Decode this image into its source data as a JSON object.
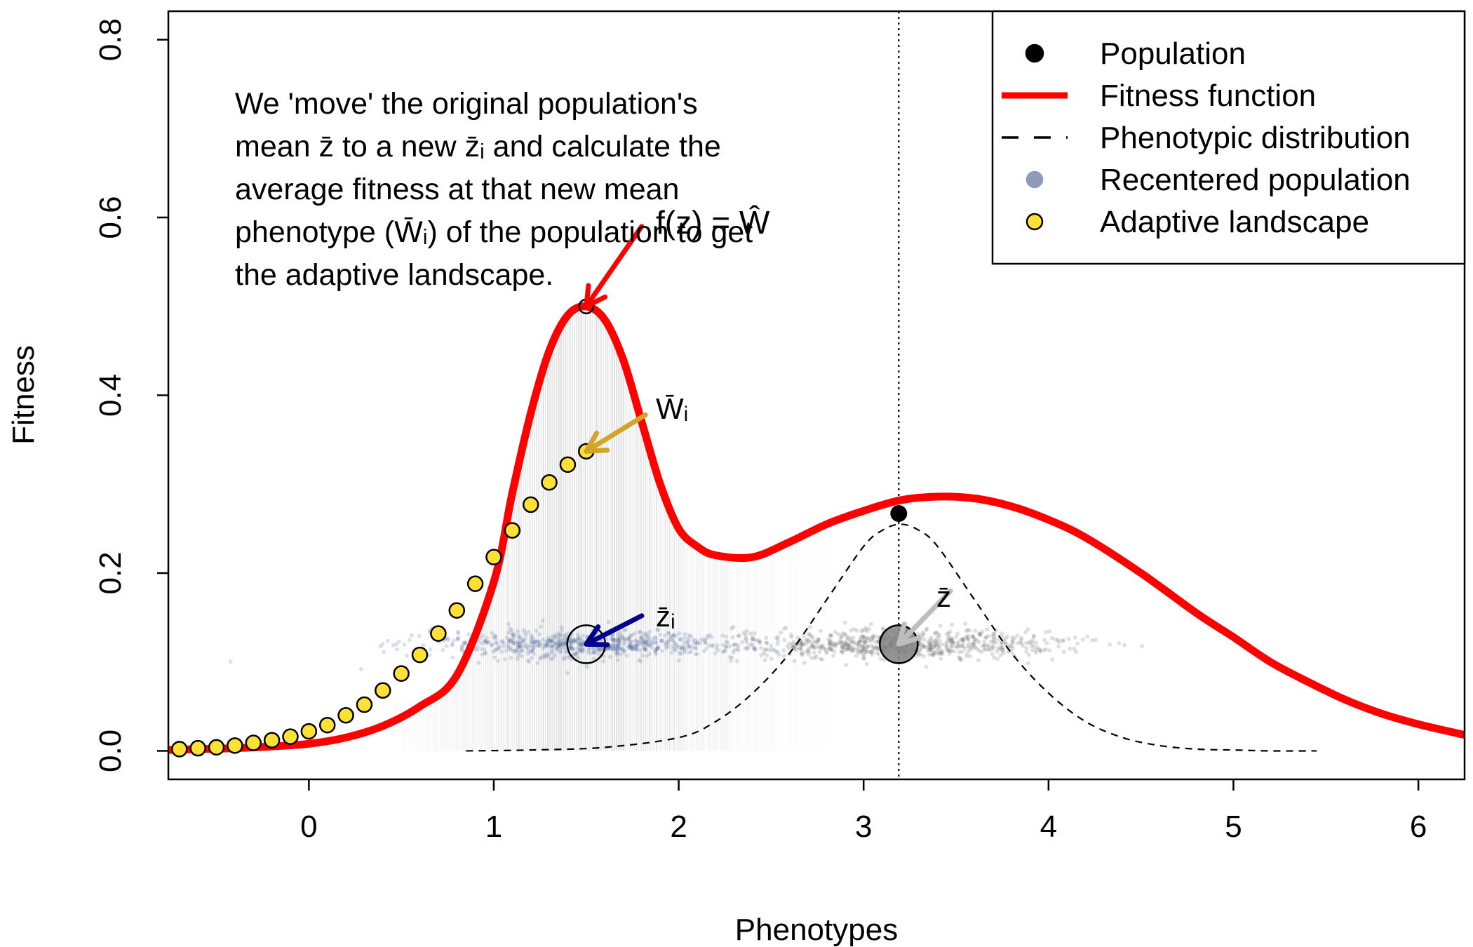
{
  "chart_data": {
    "type": "scatter",
    "xlabel": "Phenotypes",
    "ylabel": "Fitness",
    "xlim": [
      -0.76,
      6.25
    ],
    "ylim": [
      -0.032,
      0.832
    ],
    "x_ticks": [
      0,
      1,
      2,
      3,
      4,
      5,
      6
    ],
    "y_ticks": [
      0.0,
      0.2,
      0.4,
      0.6,
      0.8
    ],
    "x_tick_labels": [
      "0",
      "1",
      "2",
      "3",
      "4",
      "5",
      "6"
    ],
    "y_tick_labels": [
      "0.0",
      "0.2",
      "0.4",
      "0.6",
      "0.8"
    ],
    "grid": false,
    "legend_position": "top-right",
    "legend": [
      {
        "label": "Population",
        "kind": "point",
        "color": "#000000"
      },
      {
        "label": "Fitness function",
        "kind": "line",
        "color": "#ff0000"
      },
      {
        "label": "Phenotypic distribution",
        "kind": "dashed-line",
        "color": "#000000"
      },
      {
        "label": "Recentered population",
        "kind": "point",
        "color": "#8f9bbd"
      },
      {
        "label": "Adaptive landscape",
        "kind": "point",
        "color": "#ffe135"
      }
    ],
    "fitness_function": {
      "color": "#ff0000",
      "x": [
        -0.76,
        -0.6,
        -0.4,
        -0.2,
        0.0,
        0.2,
        0.4,
        0.6,
        0.8,
        1.0,
        1.1,
        1.2,
        1.3,
        1.4,
        1.5,
        1.6,
        1.7,
        1.8,
        1.9,
        2.0,
        2.1,
        2.2,
        2.4,
        2.6,
        2.8,
        3.0,
        3.2,
        3.4,
        3.6,
        3.8,
        4.0,
        4.2,
        4.5,
        4.8,
        5.0,
        5.2,
        5.4,
        5.6,
        5.8,
        6.0,
        6.25
      ],
      "y": [
        0.001,
        0.002,
        0.003,
        0.005,
        0.008,
        0.015,
        0.028,
        0.05,
        0.085,
        0.19,
        0.29,
        0.38,
        0.45,
        0.49,
        0.5,
        0.485,
        0.44,
        0.37,
        0.3,
        0.25,
        0.23,
        0.22,
        0.218,
        0.235,
        0.255,
        0.27,
        0.282,
        0.286,
        0.284,
        0.275,
        0.26,
        0.24,
        0.2,
        0.155,
        0.128,
        0.1,
        0.078,
        0.058,
        0.042,
        0.03,
        0.018
      ]
    },
    "adaptive_landscape": {
      "color": "#ffe135",
      "x": [
        -0.7,
        -0.6,
        -0.5,
        -0.4,
        -0.3,
        -0.2,
        -0.1,
        0.0,
        0.1,
        0.2,
        0.3,
        0.4,
        0.5,
        0.6,
        0.7,
        0.8,
        0.9,
        1.0,
        1.1,
        1.2,
        1.3,
        1.4,
        1.5
      ],
      "y": [
        0.002,
        0.003,
        0.004,
        0.006,
        0.009,
        0.012,
        0.016,
        0.022,
        0.029,
        0.04,
        0.052,
        0.068,
        0.087,
        0.108,
        0.132,
        0.158,
        0.188,
        0.218,
        0.248,
        0.277,
        0.302,
        0.322,
        0.337
      ]
    },
    "phenotypic_distribution": {
      "style": "dashed",
      "x": [
        0.85,
        1.2,
        1.6,
        2.0,
        2.2,
        2.4,
        2.6,
        2.8,
        3.0,
        3.1,
        3.2,
        3.3,
        3.4,
        3.6,
        3.8,
        4.0,
        4.2,
        4.4,
        4.6,
        4.8,
        5.0,
        5.2,
        5.45
      ],
      "y": [
        0.0,
        0.001,
        0.004,
        0.015,
        0.033,
        0.065,
        0.11,
        0.17,
        0.23,
        0.248,
        0.255,
        0.248,
        0.23,
        0.17,
        0.11,
        0.065,
        0.033,
        0.015,
        0.006,
        0.002,
        0.001,
        0.0,
        0.0
      ]
    },
    "population_mean": {
      "x": 3.19,
      "y": 0.267,
      "color": "#000000"
    },
    "mean_vertical_line_x": 3.19,
    "recentered_population": {
      "center_x": 1.5,
      "y": 0.12,
      "spread": 0.45,
      "color": "#3b5690"
    },
    "original_population": {
      "center_x": 3.19,
      "y": 0.12,
      "spread": 0.45,
      "color": "#555555"
    },
    "annotations": [
      {
        "id": "optimum",
        "point": [
          1.5,
          0.5
        ],
        "from": [
          1.8,
          0.59
        ],
        "color": "#ff0000",
        "label": "f(z) = Ŵ"
      },
      {
        "id": "wbar",
        "point": [
          1.5,
          0.337
        ],
        "from": [
          1.82,
          0.378
        ],
        "color": "#d4a32a",
        "label": "W̄ᵢ"
      },
      {
        "id": "zbar_i",
        "point": [
          1.5,
          0.12
        ],
        "from": [
          1.8,
          0.152
        ],
        "color": "#00008b",
        "label": "z̄ᵢ"
      },
      {
        "id": "zbar",
        "point": [
          3.19,
          0.12
        ],
        "from": [
          3.47,
          0.18
        ],
        "color": "#bdbdbd",
        "label": "z̄"
      }
    ],
    "note_lines": [
      "We 'move' the original population's",
      "mean z̄ to a new z̄ᵢ and calculate the",
      "average fitness at that new mean",
      "phenotype (W̄ᵢ) of the population to get",
      "the adaptive landscape."
    ]
  }
}
